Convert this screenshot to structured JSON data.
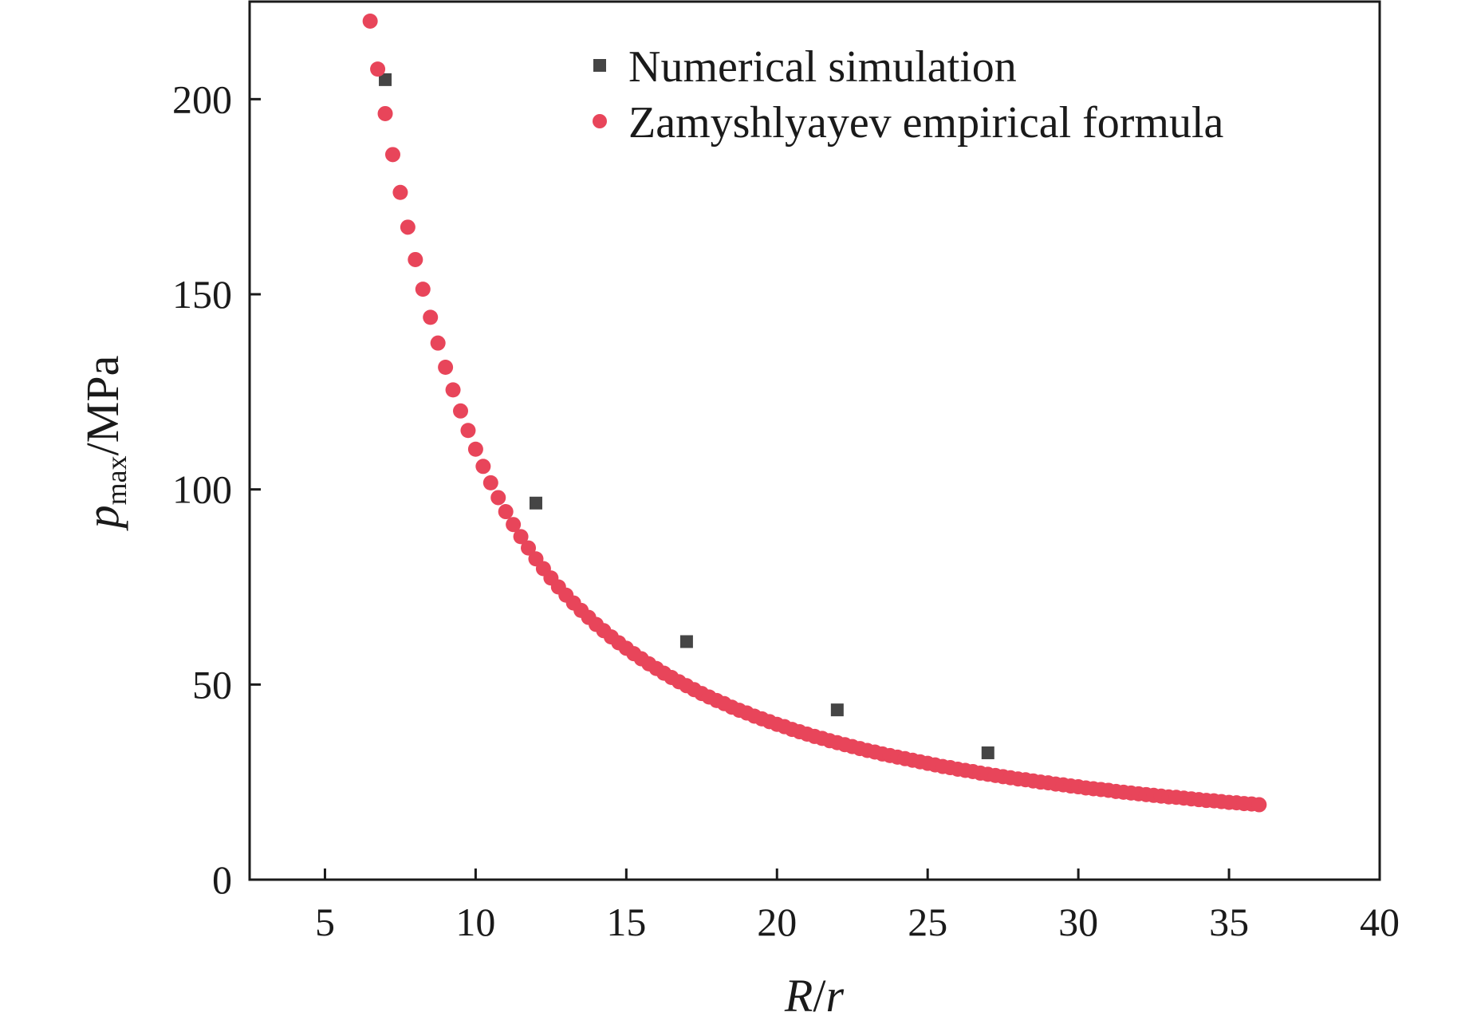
{
  "chart_data": {
    "type": "scatter",
    "xlabel": {
      "italic": "R",
      "slash": "/",
      "italic2": "r"
    },
    "ylabel": {
      "base": "p",
      "sub": "max",
      "unit": "/MPa"
    },
    "xlim": [
      2.5,
      40
    ],
    "ylim": [
      0,
      225
    ],
    "xticks": [
      5,
      10,
      15,
      20,
      25,
      30,
      35,
      40
    ],
    "yticks": [
      0,
      50,
      100,
      150,
      200
    ],
    "grid": false,
    "legend_position": "top-right",
    "series": [
      {
        "name": "Numerical simulation",
        "marker": "square",
        "color": "#454545",
        "x": [
          7,
          12,
          17,
          22,
          27
        ],
        "y": [
          205,
          96.5,
          61,
          43.5,
          32.5
        ]
      },
      {
        "name": "Zamyshlyayev empirical formula",
        "marker": "circle",
        "color": "#e8455a",
        "x": [
          6.5,
          6.75,
          7.0,
          7.25,
          7.5,
          7.75,
          8.0,
          8.25,
          8.5,
          8.75,
          9.0,
          9.25,
          9.5,
          9.75,
          10.0,
          10.25,
          10.5,
          10.75,
          11.0,
          11.25,
          11.5,
          11.75,
          12.0,
          12.25,
          12.5,
          12.75,
          13.0,
          13.25,
          13.5,
          13.75,
          14.0,
          14.25,
          14.5,
          14.75,
          15.0,
          15.25,
          15.5,
          15.75,
          16.0,
          16.25,
          16.5,
          16.75,
          17.0,
          17.25,
          17.5,
          17.75,
          18.0,
          18.25,
          18.5,
          18.75,
          19.0,
          19.25,
          19.5,
          19.75,
          20.0,
          20.25,
          20.5,
          20.75,
          21.0,
          21.25,
          21.5,
          21.75,
          22.0,
          22.25,
          22.5,
          22.75,
          23.0,
          23.25,
          23.5,
          23.75,
          24.0,
          24.25,
          24.5,
          24.75,
          25.0,
          25.25,
          25.5,
          25.75,
          26.0,
          26.25,
          26.5,
          26.75,
          27.0,
          27.25,
          27.5,
          27.75,
          28.0,
          28.25,
          28.5,
          28.75,
          29.0,
          29.25,
          29.5,
          29.75,
          30.0,
          30.25,
          30.5,
          30.75,
          31.0,
          31.25,
          31.5,
          31.75,
          32.0,
          32.25,
          32.5,
          32.75,
          33.0,
          33.25,
          33.5,
          33.75,
          34.0,
          34.25,
          34.5,
          34.75,
          35.0,
          35.25,
          35.5,
          35.75,
          36.0
        ],
        "y": [
          220.0,
          207.7,
          196.3,
          185.8,
          176.1,
          167.2,
          158.9,
          151.3,
          144.1,
          137.5,
          131.3,
          125.5,
          120.1,
          115.1,
          110.3,
          105.9,
          101.7,
          97.9,
          94.3,
          91.0,
          87.9,
          85.0,
          82.2,
          79.7,
          77.3,
          75.0,
          72.9,
          70.9,
          69.0,
          67.2,
          65.4,
          63.8,
          62.2,
          60.7,
          59.3,
          57.9,
          56.6,
          55.3,
          54.1,
          52.9,
          51.8,
          50.7,
          49.7,
          48.7,
          47.7,
          46.8,
          45.9,
          45.1,
          44.2,
          43.4,
          42.7,
          41.9,
          41.2,
          40.5,
          39.8,
          39.2,
          38.5,
          37.9,
          37.3,
          36.7,
          36.2,
          35.6,
          35.1,
          34.6,
          34.1,
          33.6,
          33.1,
          32.7,
          32.2,
          31.8,
          31.4,
          31.0,
          30.6,
          30.2,
          29.8,
          29.4,
          29.0,
          28.7,
          28.3,
          28.0,
          27.7,
          27.3,
          27.0,
          26.7,
          26.4,
          26.1,
          25.8,
          25.6,
          25.3,
          25.0,
          24.8,
          24.5,
          24.3,
          24.0,
          23.8,
          23.5,
          23.3,
          23.1,
          22.9,
          22.6,
          22.4,
          22.2,
          22.0,
          21.8,
          21.6,
          21.4,
          21.2,
          21.1,
          20.9,
          20.7,
          20.5,
          20.3,
          20.2,
          20.0,
          19.8,
          19.7,
          19.5,
          19.4,
          19.2
        ]
      }
    ]
  }
}
